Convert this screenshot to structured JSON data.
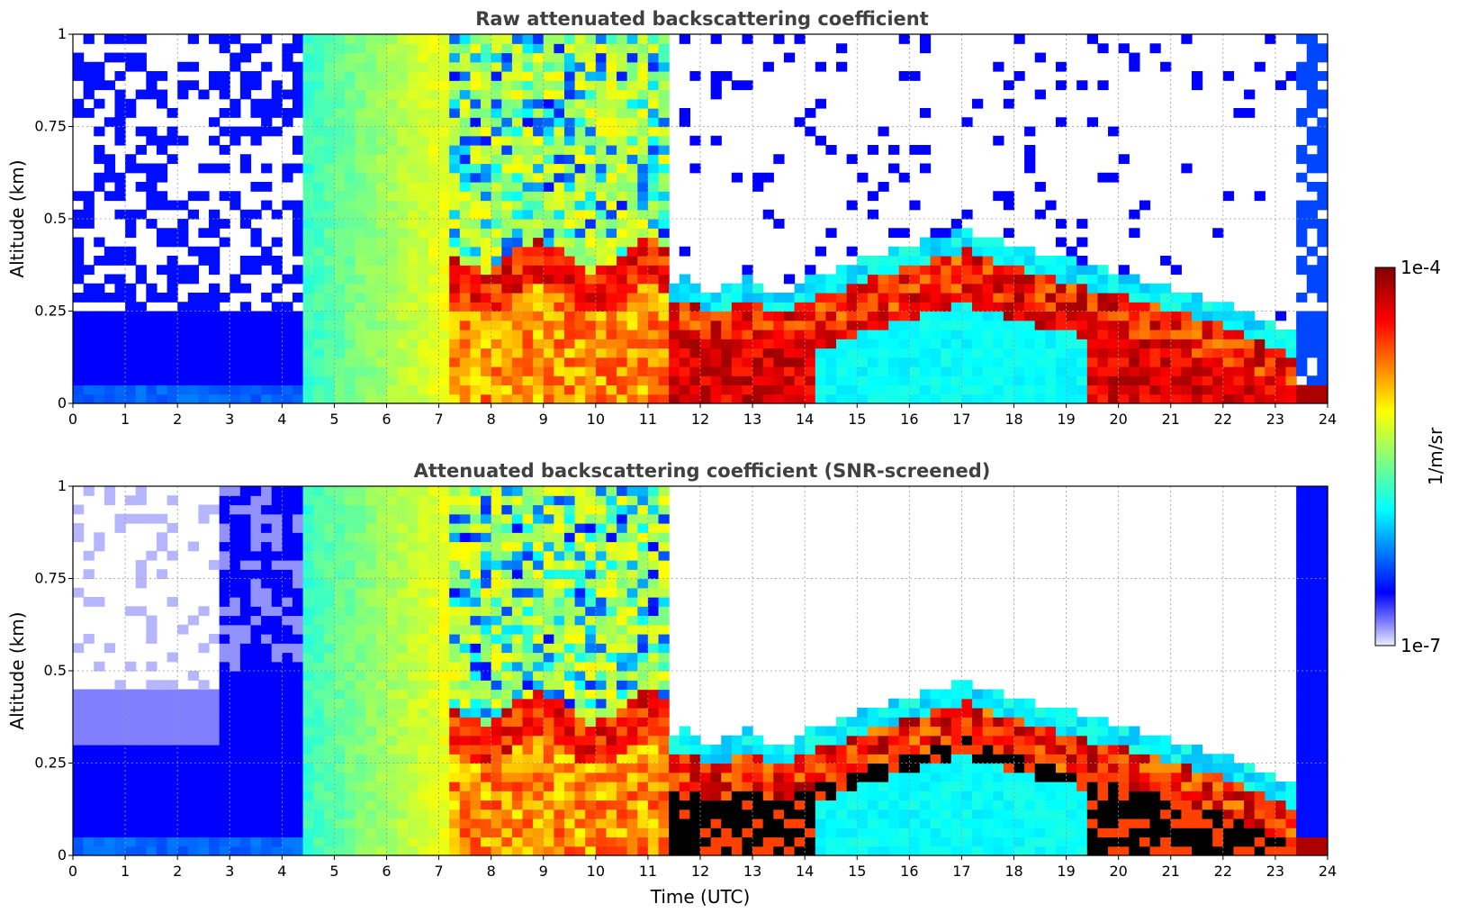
{
  "chart_data": [
    {
      "type": "heatmap",
      "title": "Raw attenuated backscattering coefficient",
      "xlabel": "",
      "ylabel": "Altitude (km)",
      "xlim": [
        0,
        24
      ],
      "ylim": [
        0,
        1
      ],
      "xticks": [
        "0",
        "1",
        "2",
        "3",
        "4",
        "5",
        "6",
        "7",
        "8",
        "9",
        "10",
        "11",
        "12",
        "13",
        "14",
        "15",
        "16",
        "17",
        "18",
        "19",
        "20",
        "21",
        "22",
        "23",
        "24"
      ],
      "yticks": [
        "0",
        "0.25",
        "0.5",
        "0.75",
        "1"
      ],
      "grid": true,
      "screened": false
    },
    {
      "type": "heatmap",
      "title": "Attenuated backscattering coefficient (SNR-screened)",
      "xlabel": "Time (UTC)",
      "ylabel": "Altitude (km)",
      "xlim": [
        0,
        24
      ],
      "ylim": [
        0,
        1
      ],
      "xticks": [
        "0",
        "1",
        "2",
        "3",
        "4",
        "5",
        "6",
        "7",
        "8",
        "9",
        "10",
        "11",
        "12",
        "13",
        "14",
        "15",
        "16",
        "17",
        "18",
        "19",
        "20",
        "21",
        "22",
        "23",
        "24"
      ],
      "yticks": [
        "0",
        "0.25",
        "0.5",
        "0.75",
        "1"
      ],
      "grid": true,
      "screened": true
    }
  ],
  "colorbar": {
    "label": "1/m/sr",
    "min_label": "1e-7",
    "max_label": "1e-4",
    "scale": "log",
    "colormap": "jet",
    "colors": [
      "#ececff",
      "#0000ff",
      "#00ffff",
      "#ffff00",
      "#ff0000",
      "#800000"
    ]
  }
}
